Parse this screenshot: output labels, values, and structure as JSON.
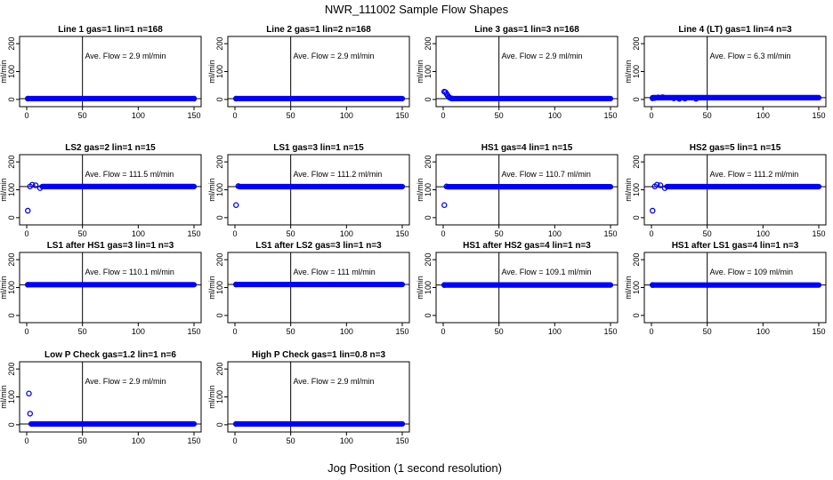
{
  "figure": {
    "title": "NWR_111002  Sample Flow Shapes",
    "xlabel": "Jog Position (1 second resolution)",
    "ylabel": "ml/min"
  },
  "colors": {
    "points": "#0000ff",
    "axis": "#000000"
  },
  "chart_data": [
    {
      "type": "scatter",
      "title": "Line 1 gas=1 lin=1 n=168",
      "annotation": "Ave. Flow =  2.9  ml/min",
      "xlim": [
        0,
        150
      ],
      "ylim": [
        -10,
        210
      ],
      "xticks": [
        0,
        50,
        100,
        150
      ],
      "yticks": [
        0,
        100,
        200
      ],
      "vline": 50,
      "hline": 2.9,
      "series": [
        {
          "points": [
            [
              1,
              2.9
            ],
            [
              150,
              2.9
            ]
          ],
          "filled_range": [
            1,
            150,
            2.9
          ]
        }
      ]
    },
    {
      "type": "scatter",
      "title": "Line 2 gas=1 lin=2 n=168",
      "annotation": "Ave. Flow =  2.9  ml/min",
      "xlim": [
        0,
        150
      ],
      "ylim": [
        -10,
        210
      ],
      "xticks": [
        0,
        50,
        100,
        150
      ],
      "yticks": [
        0,
        100,
        200
      ],
      "vline": 50,
      "hline": 2.9,
      "series": [
        {
          "points": [
            [
              1,
              2.9
            ]
          ],
          "filled_range": [
            1,
            150,
            2.9
          ]
        }
      ]
    },
    {
      "type": "scatter",
      "title": "Line 3 gas=1 lin=3 n=168",
      "annotation": "Ave. Flow =  2.9  ml/min",
      "xlim": [
        0,
        150
      ],
      "ylim": [
        -10,
        210
      ],
      "xticks": [
        0,
        50,
        100,
        150
      ],
      "yticks": [
        0,
        100,
        200
      ],
      "vline": 50,
      "hline": 2.9,
      "series": [
        {
          "points": [
            [
              1,
              28
            ],
            [
              2,
              26
            ],
            [
              3,
              20
            ],
            [
              4,
              14
            ],
            [
              5,
              9
            ],
            [
              6,
              6
            ],
            [
              7,
              4
            ],
            [
              8,
              3
            ]
          ],
          "filled_range": [
            8,
            150,
            2.9
          ]
        }
      ]
    },
    {
      "type": "scatter",
      "title": "Line 4 (LT) gas=1 lin=4 n=3",
      "annotation": "Ave. Flow =  6.3  ml/min",
      "xlim": [
        0,
        150
      ],
      "ylim": [
        -10,
        210
      ],
      "xticks": [
        0,
        50,
        100,
        150
      ],
      "yticks": [
        0,
        100,
        200
      ],
      "vline": 50,
      "hline": 6.3,
      "series": [
        {
          "points": [
            [
              1,
              4
            ],
            [
              3,
              5
            ],
            [
              6,
              7
            ],
            [
              10,
              8
            ],
            [
              20,
              4
            ],
            [
              25,
              2
            ],
            [
              30,
              3
            ],
            [
              40,
              2
            ]
          ],
          "filled_range": [
            1,
            150,
            6.3
          ]
        }
      ]
    },
    {
      "type": "scatter",
      "title": "LS2 gas=2 lin=1 n=15",
      "annotation": "Ave. Flow =  111.5  ml/min",
      "xlim": [
        0,
        150
      ],
      "ylim": [
        -10,
        210
      ],
      "xticks": [
        0,
        50,
        100,
        150
      ],
      "yticks": [
        0,
        100,
        200
      ],
      "vline": 50,
      "hline": 111.5,
      "series": [
        {
          "points": [
            [
              1,
              25
            ],
            [
              3,
              112
            ],
            [
              5,
              118
            ],
            [
              8,
              116
            ],
            [
              12,
              106
            ]
          ],
          "filled_range": [
            14,
            150,
            111.5
          ]
        }
      ]
    },
    {
      "type": "scatter",
      "title": "LS1 gas=3 lin=1 n=15",
      "annotation": "Ave. Flow =  111.2  ml/min",
      "xlim": [
        0,
        150
      ],
      "ylim": [
        -10,
        210
      ],
      "xticks": [
        0,
        50,
        100,
        150
      ],
      "yticks": [
        0,
        100,
        200
      ],
      "vline": 50,
      "hline": 111.2,
      "series": [
        {
          "points": [
            [
              1,
              45
            ],
            [
              3,
              113
            ]
          ],
          "filled_range": [
            4,
            150,
            111.2
          ]
        }
      ]
    },
    {
      "type": "scatter",
      "title": "HS1 gas=4 lin=1 n=15",
      "annotation": "Ave. Flow =  110.7  ml/min",
      "xlim": [
        0,
        150
      ],
      "ylim": [
        -10,
        210
      ],
      "xticks": [
        0,
        50,
        100,
        150
      ],
      "yticks": [
        0,
        100,
        200
      ],
      "vline": 50,
      "hline": 110.7,
      "series": [
        {
          "points": [
            [
              1,
              45
            ],
            [
              3,
              112
            ]
          ],
          "filled_range": [
            4,
            150,
            110.7
          ]
        }
      ]
    },
    {
      "type": "scatter",
      "title": "HS2 gas=5 lin=1 n=15",
      "annotation": "Ave. Flow =  111.2  ml/min",
      "xlim": [
        0,
        150
      ],
      "ylim": [
        -10,
        210
      ],
      "xticks": [
        0,
        50,
        100,
        150
      ],
      "yticks": [
        0,
        100,
        200
      ],
      "vline": 50,
      "hline": 111.2,
      "series": [
        {
          "points": [
            [
              1,
              25
            ],
            [
              3,
              112
            ],
            [
              5,
              118
            ],
            [
              8,
              116
            ],
            [
              12,
              106
            ]
          ],
          "filled_range": [
            14,
            150,
            111.2
          ]
        }
      ]
    },
    {
      "type": "scatter",
      "title": "LS1 after HS1 gas=3 lin=1 n=3",
      "annotation": "Ave. Flow =  110.1  ml/min",
      "xlim": [
        0,
        150
      ],
      "ylim": [
        -10,
        210
      ],
      "xticks": [
        0,
        50,
        100,
        150
      ],
      "yticks": [
        0,
        100,
        200
      ],
      "vline": 50,
      "hline": 110.1,
      "series": [
        {
          "points": [
            [
              1,
              110
            ]
          ],
          "filled_range": [
            1,
            150,
            110.1
          ]
        }
      ]
    },
    {
      "type": "scatter",
      "title": "LS1 after LS2 gas=3 lin=1 n=3",
      "annotation": "Ave. Flow =  111  ml/min",
      "xlim": [
        0,
        150
      ],
      "ylim": [
        -10,
        210
      ],
      "xticks": [
        0,
        50,
        100,
        150
      ],
      "yticks": [
        0,
        100,
        200
      ],
      "vline": 50,
      "hline": 111,
      "series": [
        {
          "points": [
            [
              1,
              111
            ]
          ],
          "filled_range": [
            1,
            150,
            111
          ]
        }
      ]
    },
    {
      "type": "scatter",
      "title": "HS1 after HS2 gas=4 lin=1 n=3",
      "annotation": "Ave. Flow =  109.1  ml/min",
      "xlim": [
        0,
        150
      ],
      "ylim": [
        -10,
        210
      ],
      "xticks": [
        0,
        50,
        100,
        150
      ],
      "yticks": [
        0,
        100,
        200
      ],
      "vline": 50,
      "hline": 109.1,
      "series": [
        {
          "points": [
            [
              1,
              109
            ]
          ],
          "filled_range": [
            1,
            150,
            109.1
          ]
        }
      ]
    },
    {
      "type": "scatter",
      "title": "HS1 after LS1 gas=4 lin=1 n=3",
      "annotation": "Ave. Flow =  109  ml/min",
      "xlim": [
        0,
        150
      ],
      "ylim": [
        -10,
        210
      ],
      "xticks": [
        0,
        50,
        100,
        150
      ],
      "yticks": [
        0,
        100,
        200
      ],
      "vline": 50,
      "hline": 109,
      "series": [
        {
          "points": [
            [
              1,
              109
            ]
          ],
          "filled_range": [
            1,
            150,
            109
          ]
        }
      ]
    },
    {
      "type": "scatter",
      "title": "Low P Check gas=1.2 lin=1 n=6",
      "annotation": "Ave. Flow =  2.9  ml/min",
      "xlim": [
        0,
        150
      ],
      "ylim": [
        -10,
        210
      ],
      "xticks": [
        0,
        50,
        100,
        150
      ],
      "yticks": [
        0,
        100,
        200
      ],
      "vline": 50,
      "hline": 2.9,
      "series": [
        {
          "points": [
            [
              2,
              112
            ],
            [
              3,
              40
            ]
          ],
          "filled_range": [
            4,
            150,
            2.9
          ]
        }
      ]
    },
    {
      "type": "scatter",
      "title": "High P Check gas=1 lin=0.8 n=3",
      "annotation": "Ave. Flow =  2.9  ml/min",
      "xlim": [
        0,
        150
      ],
      "ylim": [
        -10,
        210
      ],
      "xticks": [
        0,
        50,
        100,
        150
      ],
      "yticks": [
        0,
        100,
        200
      ],
      "vline": 50,
      "hline": 2.9,
      "series": [
        {
          "points": [
            [
              1,
              2.9
            ]
          ],
          "filled_range": [
            1,
            150,
            2.9
          ]
        }
      ]
    }
  ]
}
